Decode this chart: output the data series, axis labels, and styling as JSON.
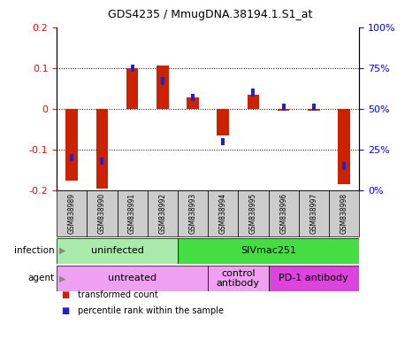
{
  "title": "GDS4235 / MmugDNA.38194.1.S1_at",
  "samples": [
    "GSM838989",
    "GSM838990",
    "GSM838991",
    "GSM838992",
    "GSM838993",
    "GSM838994",
    "GSM838995",
    "GSM838996",
    "GSM838997",
    "GSM838998"
  ],
  "transformed_counts": [
    -0.175,
    -0.195,
    0.1,
    0.105,
    0.027,
    -0.065,
    0.035,
    -0.005,
    -0.005,
    -0.185
  ],
  "percentile_ranks": [
    20,
    18,
    75,
    67,
    57,
    30,
    60,
    51,
    51,
    15
  ],
  "ylim_left": [
    -0.2,
    0.2
  ],
  "ylim_right": [
    0,
    100
  ],
  "yticks_left": [
    -0.2,
    -0.1,
    0.0,
    0.1,
    0.2
  ],
  "ytick_labels_left": [
    "-0.2",
    "-0.1",
    "0",
    "0.1",
    "0.2"
  ],
  "yticks_right": [
    0,
    25,
    50,
    75,
    100
  ],
  "ytick_labels_right": [
    "0%",
    "25%",
    "50%",
    "75%",
    "100%"
  ],
  "bar_color_red": "#cc2200",
  "bar_color_blue": "#2222cc",
  "infection_groups": [
    {
      "label": "uninfected",
      "start": 0,
      "end": 4,
      "color": "#aaeaaa"
    },
    {
      "label": "SIVmac251",
      "start": 4,
      "end": 10,
      "color": "#44dd44"
    }
  ],
  "agent_groups": [
    {
      "label": "untreated",
      "start": 0,
      "end": 5,
      "color": "#f0a0f0"
    },
    {
      "label": "control\nantibody",
      "start": 5,
      "end": 7,
      "color": "#f0a0f0"
    },
    {
      "label": "PD-1 antibody",
      "start": 7,
      "end": 10,
      "color": "#dd44dd"
    }
  ],
  "infection_label": "infection",
  "agent_label": "agent",
  "legend_red": "transformed count",
  "legend_blue": "percentile rank within the sample",
  "red_bar_width": 0.4,
  "blue_bar_width": 0.12,
  "blue_bar_height": 0.018
}
